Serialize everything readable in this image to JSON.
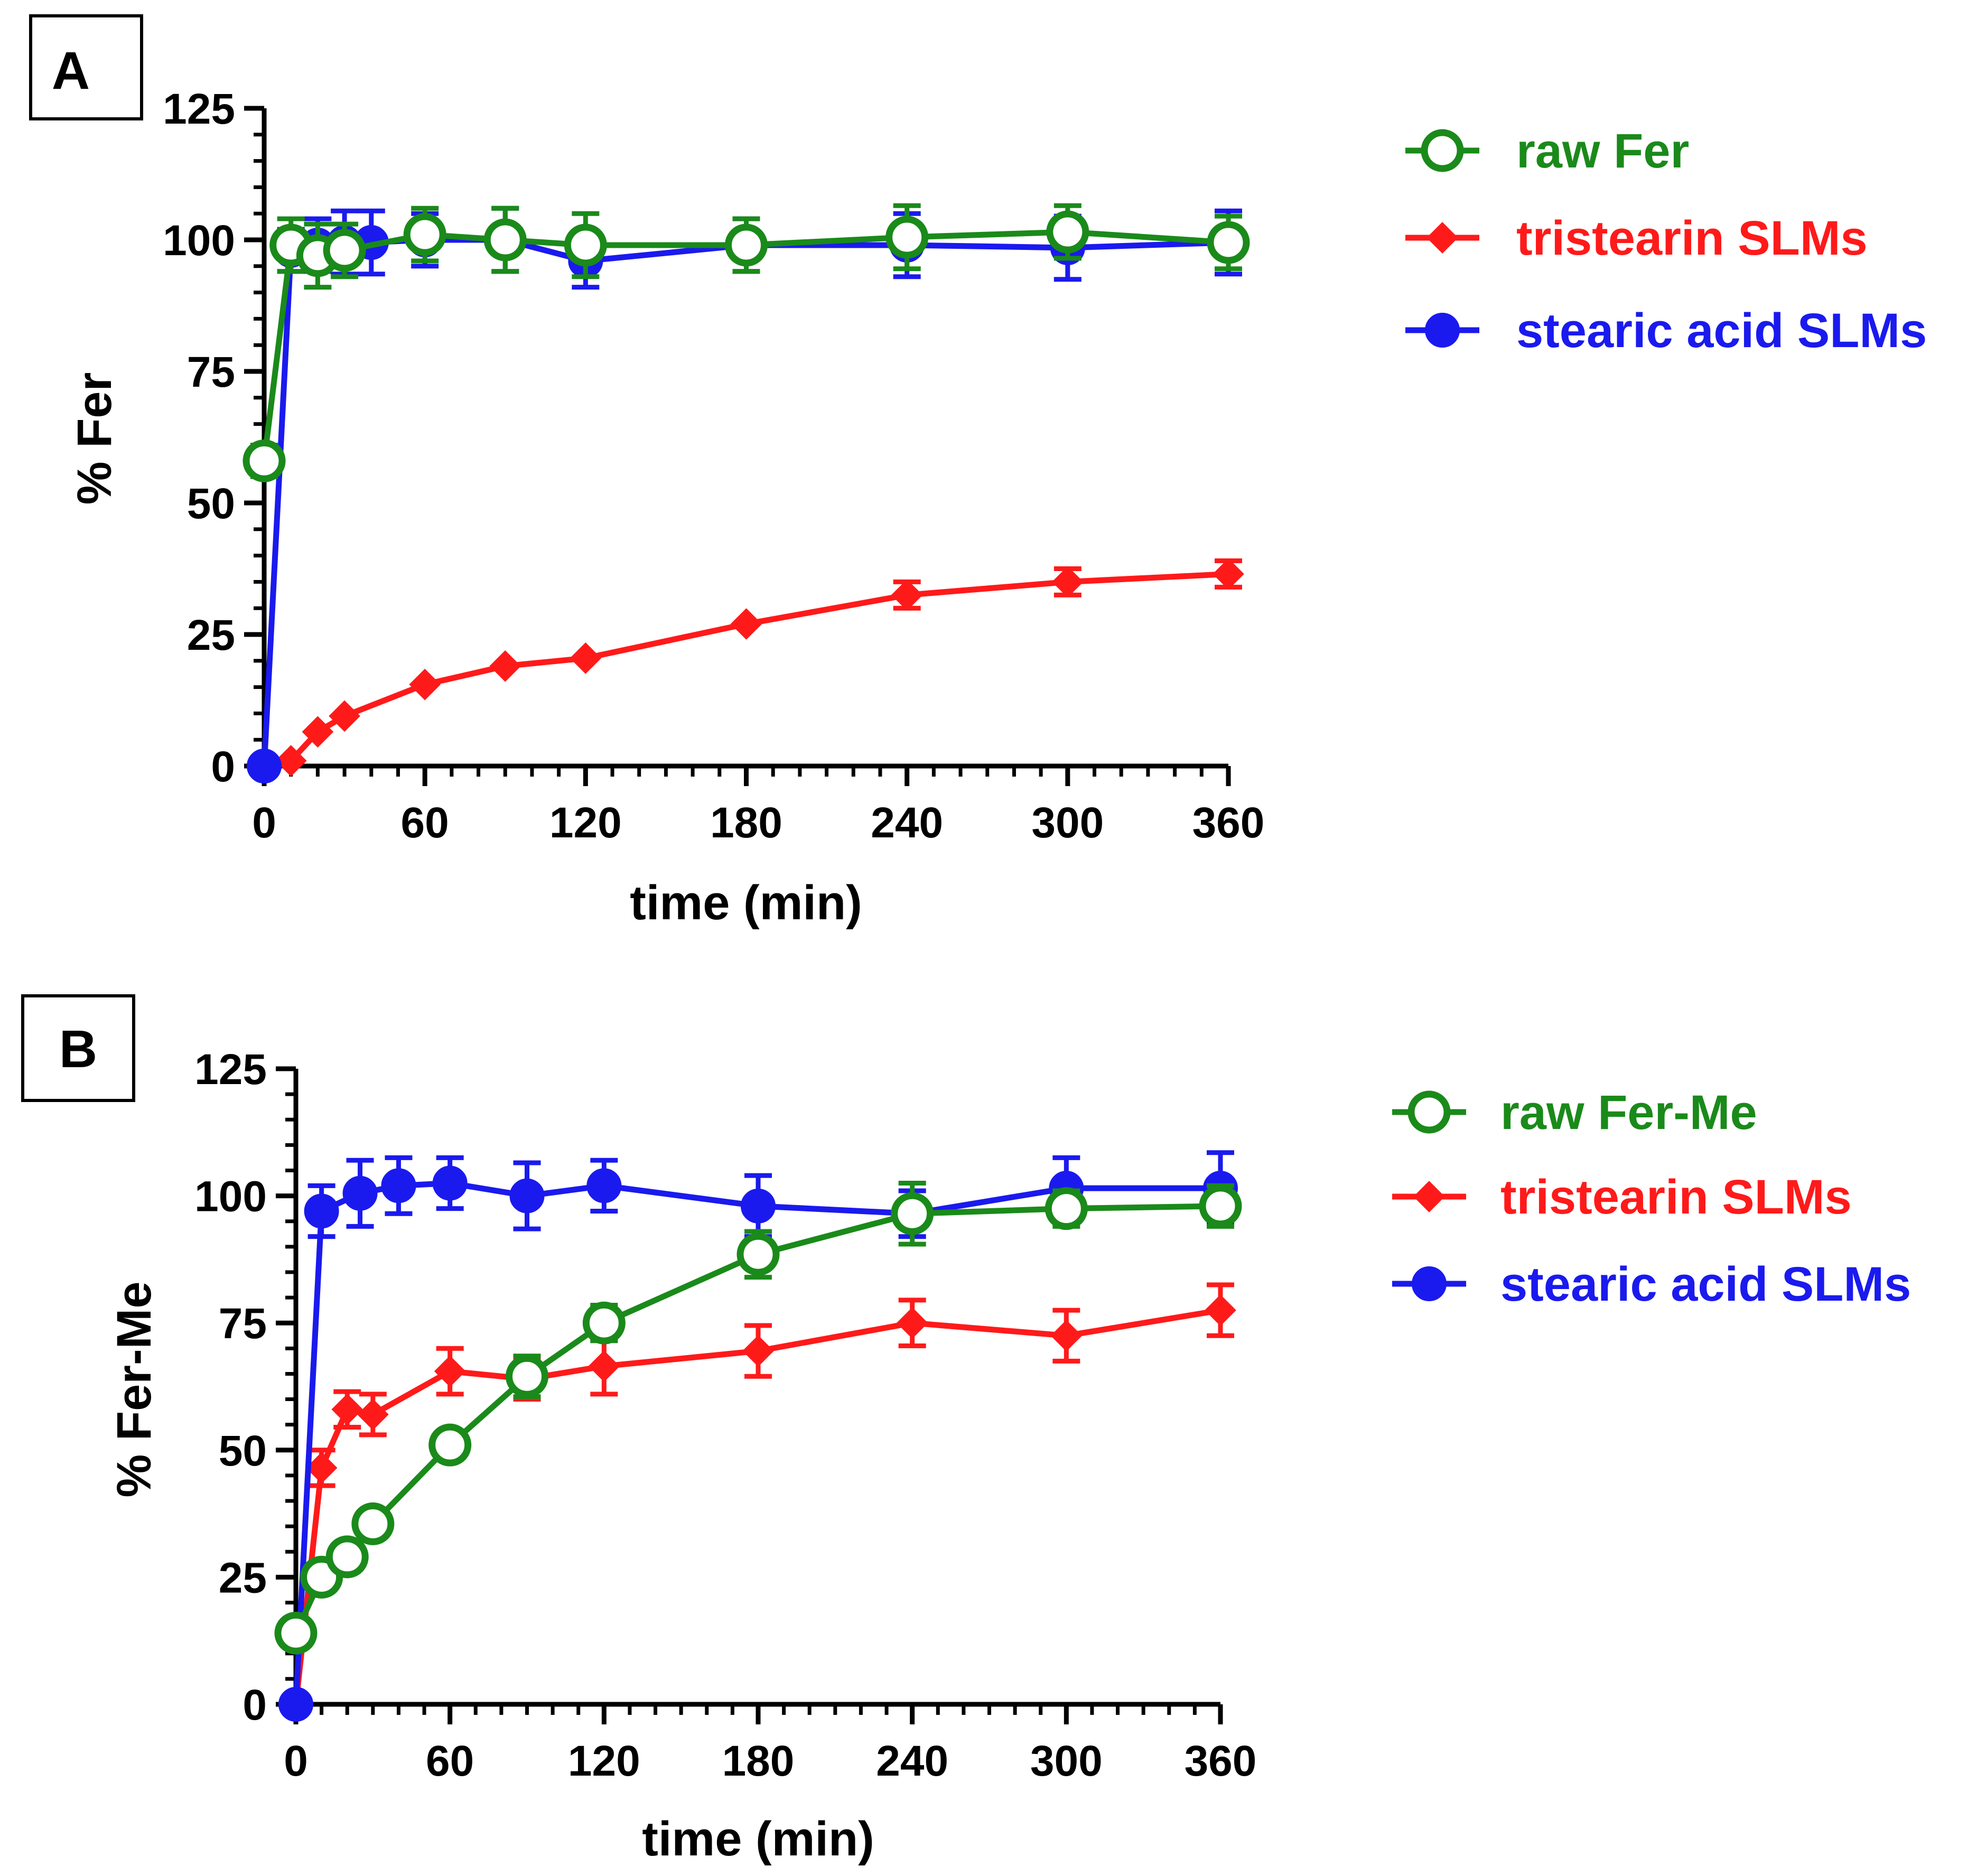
{
  "colors": {
    "raw": "#1a8a1a",
    "tristearin": "#ff1a1a",
    "stearic": "#1a1aee",
    "axis": "#000000"
  },
  "chart_data": [
    {
      "type": "line",
      "panel_label": "A",
      "xlabel": "time (min)",
      "ylabel": "% Fer",
      "xlim": [
        0,
        360
      ],
      "ylim": [
        0,
        125
      ],
      "xticks": [
        0,
        60,
        120,
        180,
        240,
        300,
        360
      ],
      "yticks": [
        0,
        25,
        50,
        75,
        100,
        125
      ],
      "error_bars": true,
      "legend_position": "right",
      "series": [
        {
          "name": "raw Fer",
          "key": "raw",
          "marker": "open-circle",
          "x": [
            0,
            10,
            20,
            30,
            60,
            90,
            120,
            180,
            240,
            300,
            360
          ],
          "y": [
            58,
            99,
            97,
            98,
            101,
            100,
            99,
            99,
            100.5,
            101.5,
            99.5
          ],
          "err": [
            3,
            5,
            6,
            5,
            5,
            6,
            6,
            5,
            6,
            5,
            5
          ]
        },
        {
          "name": "tristearin SLMs",
          "key": "tristearin",
          "marker": "diamond",
          "x": [
            0,
            10,
            20,
            30,
            60,
            90,
            120,
            180,
            240,
            300,
            360
          ],
          "y": [
            0,
            1,
            6.5,
            9.5,
            15.5,
            19,
            20.5,
            27,
            32.5,
            35,
            36.5
          ],
          "err": [
            0,
            0,
            0,
            0,
            0,
            0,
            0,
            0,
            2.5,
            2.5,
            2.5
          ]
        },
        {
          "name": "stearic acid SLMs",
          "key": "stearic",
          "marker": "filled-circle",
          "x": [
            0,
            10,
            20,
            30,
            40,
            60,
            90,
            120,
            180,
            240,
            300,
            360
          ],
          "y": [
            0,
            98,
            99,
            99.5,
            99.5,
            100,
            100,
            96,
            99,
            99,
            98.5,
            99.5
          ],
          "err": [
            0,
            4,
            5,
            6,
            6,
            5,
            6,
            5,
            5,
            6,
            6,
            6
          ]
        }
      ]
    },
    {
      "type": "line",
      "panel_label": "B",
      "xlabel": "time (min)",
      "ylabel": "% Fer-Me",
      "xlim": [
        0,
        360
      ],
      "ylim": [
        0,
        125
      ],
      "xticks": [
        0,
        60,
        120,
        180,
        240,
        300,
        360
      ],
      "yticks": [
        0,
        25,
        50,
        75,
        100,
        125
      ],
      "error_bars": true,
      "legend_position": "right",
      "series": [
        {
          "name": "raw Fer-Me",
          "key": "raw",
          "marker": "open-circle",
          "x": [
            0,
            10,
            20,
            30,
            60,
            90,
            120,
            180,
            240,
            300,
            360
          ],
          "y": [
            14,
            25,
            29,
            35.5,
            51,
            64.5,
            75,
            88.5,
            96.5,
            97.5,
            98
          ],
          "err": [
            2,
            2,
            2,
            2,
            2,
            4,
            3.5,
            4.5,
            6,
            3.5,
            4
          ]
        },
        {
          "name": "tristearin SLMs",
          "key": "tristearin",
          "marker": "diamond",
          "x": [
            0,
            10,
            20,
            30,
            60,
            90,
            120,
            180,
            240,
            300,
            360
          ],
          "y": [
            0,
            46.5,
            58,
            57,
            65.5,
            64,
            66.5,
            69.5,
            75,
            72.5,
            77.5
          ],
          "err": [
            0,
            3.5,
            3.5,
            4,
            4.5,
            4,
            5.5,
            5,
            4.5,
            5,
            5
          ]
        },
        {
          "name": "stearic acid SLMs",
          "key": "stearic",
          "marker": "filled-circle",
          "x": [
            0,
            10,
            25,
            40,
            60,
            90,
            120,
            180,
            240,
            300,
            360
          ],
          "y": [
            0,
            97,
            100.5,
            102,
            102.5,
            100,
            102,
            98,
            96.5,
            101.5,
            101.5
          ],
          "err": [
            0,
            5,
            6.5,
            5.5,
            5,
            6.5,
            5,
            6,
            4.5,
            6,
            7
          ]
        }
      ]
    }
  ]
}
